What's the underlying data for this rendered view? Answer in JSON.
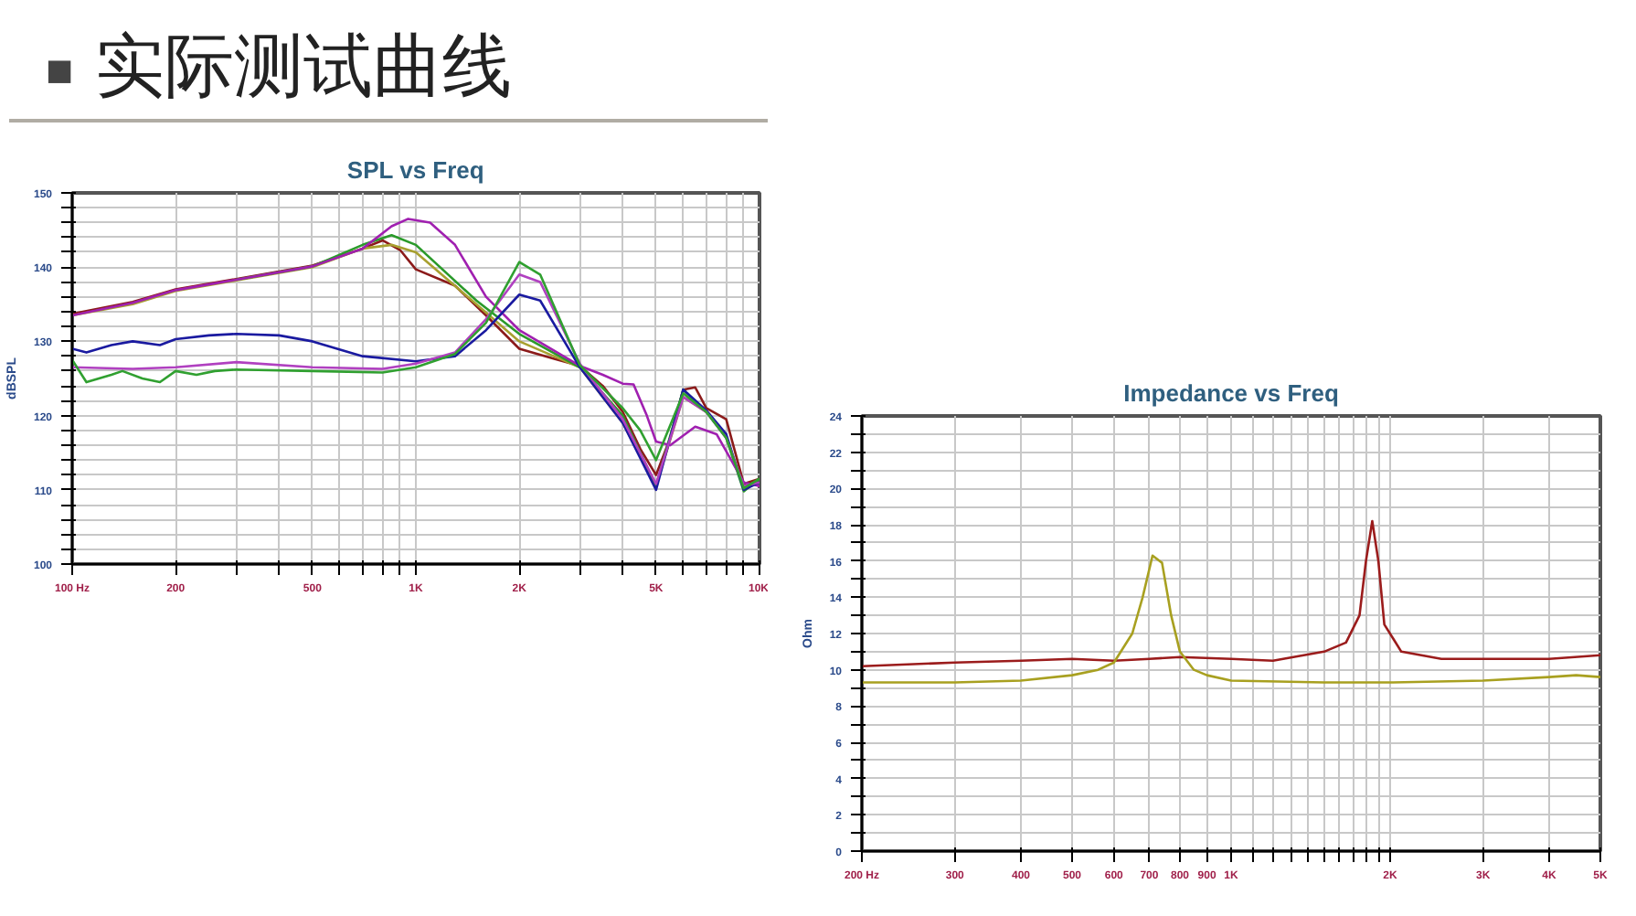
{
  "chart_data": [
    {
      "type": "other",
      "title": "实际测试曲线",
      "annotations": [
        "■"
      ]
    },
    {
      "type": "line",
      "title": "SPL vs Freq",
      "ylabel": "dBSPL",
      "log": "x",
      "grid": true,
      "xlim": [
        100,
        10000
      ],
      "ylim": [
        100,
        150
      ],
      "xticks": [
        {
          "value": 100,
          "label": "100 Hz"
        },
        200,
        {
          "value": 300,
          "label": null
        },
        {
          "value": 400,
          "label": null
        },
        500,
        {
          "value": 600,
          "label": null
        },
        {
          "value": 700,
          "label": null
        },
        {
          "value": 800,
          "label": null
        },
        {
          "value": 900,
          "label": null
        },
        {
          "value": 1000,
          "label": "1K"
        },
        {
          "value": 2000,
          "label": "2K"
        },
        {
          "value": 3000,
          "label": null
        },
        {
          "value": 4000,
          "label": null
        },
        {
          "value": 5000,
          "label": "5K"
        },
        {
          "value": 6000,
          "label": null
        },
        {
          "value": 7000,
          "label": null
        },
        {
          "value": 8000,
          "label": null
        },
        {
          "value": 9000,
          "label": null
        },
        {
          "value": 10000,
          "label": "10K"
        }
      ],
      "yticks": [
        100,
        {
          "value": 102,
          "label": null
        },
        {
          "value": 104,
          "label": null
        },
        {
          "value": 106,
          "label": null
        },
        {
          "value": 108,
          "label": null
        },
        110,
        {
          "value": 112,
          "label": null
        },
        {
          "value": 114,
          "label": null
        },
        {
          "value": 116,
          "label": null
        },
        {
          "value": 118,
          "label": null
        },
        120,
        {
          "value": 122,
          "label": null
        },
        {
          "value": 124,
          "label": null
        },
        {
          "value": 126,
          "label": null
        },
        {
          "value": 128,
          "label": null
        },
        130,
        {
          "value": 132,
          "label": null
        },
        {
          "value": 134,
          "label": null
        },
        {
          "value": 136,
          "label": null
        },
        {
          "value": 138,
          "label": null
        },
        140,
        {
          "value": 142,
          "label": null
        },
        {
          "value": 144,
          "label": null
        },
        {
          "value": 146,
          "label": null
        },
        {
          "value": 148,
          "label": null
        },
        150
      ],
      "series": [
        {
          "color": "#8b1a1a",
          "x": [
            100,
            150,
            200,
            300,
            500,
            700,
            800,
            900,
            1000,
            1300,
            1600,
            2000,
            2500,
            3000,
            3500,
            4000,
            4500,
            5000,
            5500,
            6000,
            6500,
            7000,
            8000,
            9000,
            10000
          ],
          "values": [
            133.7,
            135.3,
            137,
            138.4,
            140.2,
            142.5,
            143.6,
            142.3,
            139.7,
            137.5,
            133.5,
            129,
            127.7,
            126.7,
            124,
            120.5,
            115.5,
            112,
            117,
            123.5,
            123.8,
            121,
            119.5,
            110.8,
            111.5
          ]
        },
        {
          "color": "#a8a030",
          "x": [
            100,
            150,
            200,
            300,
            500,
            700,
            850,
            1000,
            1500,
            2000,
            3000,
            4000,
            5000,
            6000,
            7000
          ],
          "values": [
            133.5,
            135,
            136.8,
            138.2,
            140,
            142.5,
            143,
            142,
            135,
            130,
            126.5,
            119,
            110.5,
            122.5,
            120.5
          ]
        },
        {
          "color": "#2a9a2a",
          "x": [
            300,
            500,
            700,
            850,
            1000,
            1500,
            2000,
            3000,
            4000,
            5000,
            6000,
            7000,
            8000,
            9000,
            10000
          ],
          "values": [
            138.3,
            140.1,
            143,
            144.3,
            143,
            135.5,
            131,
            126.5,
            120,
            110.5,
            123.5,
            120.5,
            117,
            109.8,
            111.5
          ]
        },
        {
          "color": "#a020b0",
          "x": [
            100,
            150,
            200,
            300,
            500,
            700,
            850,
            950,
            1100,
            1300,
            1600,
            2000,
            3000,
            3500,
            4000,
            4300,
            4700,
            5000,
            5500,
            6500,
            7500,
            9000,
            10000
          ],
          "values": [
            133.5,
            135.2,
            136.9,
            138.3,
            140.1,
            142.5,
            145.5,
            146.5,
            146,
            143,
            136,
            131.5,
            126.7,
            125.5,
            124.3,
            124.2,
            120,
            116.5,
            116,
            118.5,
            117.5,
            111,
            110.5
          ]
        },
        {
          "color": "#1a1aa0",
          "x": [
            100,
            110,
            130,
            150,
            180,
            200,
            250,
            300,
            400,
            500,
            700,
            1000,
            1300,
            1600,
            2000,
            2300,
            3000,
            4000,
            5000,
            6000,
            7000,
            8000,
            9000,
            10000
          ],
          "values": [
            129,
            128.5,
            129.5,
            130,
            129.5,
            130.3,
            130.8,
            131,
            130.8,
            130,
            128,
            127.3,
            128,
            131.5,
            136.3,
            135.5,
            126.5,
            119,
            110,
            123.5,
            120.7,
            117.5,
            110,
            111
          ]
        },
        {
          "color": "#b040c0",
          "x": [
            100,
            150,
            200,
            300,
            500,
            800,
            1000,
            1300,
            1600,
            2000,
            2300,
            3000,
            4000,
            5000,
            6000,
            7000,
            8000,
            9000,
            10000
          ],
          "values": [
            126.5,
            126.3,
            126.5,
            127.2,
            126.5,
            126.3,
            127,
            128.5,
            133,
            139,
            138,
            127,
            119.5,
            110.8,
            122.5,
            120.5,
            117,
            110.5,
            111
          ]
        },
        {
          "color": "#30a030",
          "x": [
            100,
            110,
            130,
            140,
            160,
            180,
            200,
            230,
            260,
            300,
            500,
            800,
            1000,
            1300,
            1600,
            2000,
            2300,
            3000,
            4000,
            4500,
            5000,
            6000,
            7000,
            8000,
            9000,
            10000
          ],
          "values": [
            127.5,
            124.5,
            125.5,
            126,
            125,
            124.5,
            126,
            125.5,
            126,
            126.2,
            126,
            125.8,
            126.5,
            128.3,
            132.5,
            140.7,
            139,
            126.8,
            121,
            118,
            114,
            123,
            120.5,
            117,
            110.2,
            111.5
          ]
        }
      ]
    },
    {
      "type": "line",
      "title": "Impedance vs Freq",
      "ylabel": "Ohm",
      "log": "x",
      "grid": true,
      "xlim": [
        200,
        5000
      ],
      "ylim": [
        0,
        24
      ],
      "xticks": [
        {
          "value": 200,
          "label": "200 Hz"
        },
        300,
        400,
        500,
        600,
        700,
        800,
        900,
        {
          "value": 1000,
          "label": "1K"
        },
        {
          "value": 1100,
          "label": null
        },
        {
          "value": 1200,
          "label": null
        },
        {
          "value": 1300,
          "label": null
        },
        {
          "value": 1400,
          "label": null
        },
        {
          "value": 1500,
          "label": null
        },
        {
          "value": 1600,
          "label": null
        },
        {
          "value": 1700,
          "label": null
        },
        {
          "value": 1800,
          "label": null
        },
        {
          "value": 1900,
          "label": null
        },
        {
          "value": 2000,
          "label": "2K"
        },
        {
          "value": 3000,
          "label": "3K"
        },
        {
          "value": 4000,
          "label": "4K"
        },
        {
          "value": 5000,
          "label": "5K"
        }
      ],
      "yticks": [
        0,
        {
          "value": 1,
          "label": null
        },
        2,
        {
          "value": 3,
          "label": null
        },
        4,
        {
          "value": 5,
          "label": null
        },
        6,
        {
          "value": 7,
          "label": null
        },
        8,
        {
          "value": 9,
          "label": null
        },
        10,
        {
          "value": 11,
          "label": null
        },
        12,
        {
          "value": 13,
          "label": null
        },
        14,
        {
          "value": 15,
          "label": null
        },
        16,
        {
          "value": 17,
          "label": null
        },
        18,
        {
          "value": 19,
          "label": null
        },
        20,
        {
          "value": 21,
          "label": null
        },
        22,
        {
          "value": 23,
          "label": null
        },
        24
      ],
      "series": [
        {
          "color": "#9b1c1c",
          "x": [
            200,
            300,
            400,
            500,
            600,
            700,
            800,
            1000,
            1200,
            1500,
            1650,
            1750,
            1800,
            1850,
            1900,
            1950,
            2100,
            2500,
            3000,
            4000,
            5000
          ],
          "values": [
            10.2,
            10.4,
            10.5,
            10.6,
            10.5,
            10.6,
            10.7,
            10.6,
            10.5,
            11,
            11.5,
            13,
            16,
            18.2,
            16,
            12.5,
            11,
            10.6,
            10.6,
            10.6,
            10.8
          ]
        },
        {
          "color": "#a8a020",
          "x": [
            200,
            300,
            400,
            500,
            560,
            600,
            650,
            680,
            710,
            740,
            770,
            800,
            850,
            900,
            1000,
            1500,
            2000,
            3000,
            4000,
            4500,
            5000
          ],
          "values": [
            9.3,
            9.3,
            9.4,
            9.7,
            10,
            10.4,
            12,
            14,
            16.3,
            15.9,
            13,
            11,
            10,
            9.7,
            9.4,
            9.3,
            9.3,
            9.4,
            9.6,
            9.7,
            9.6
          ]
        }
      ]
    }
  ]
}
